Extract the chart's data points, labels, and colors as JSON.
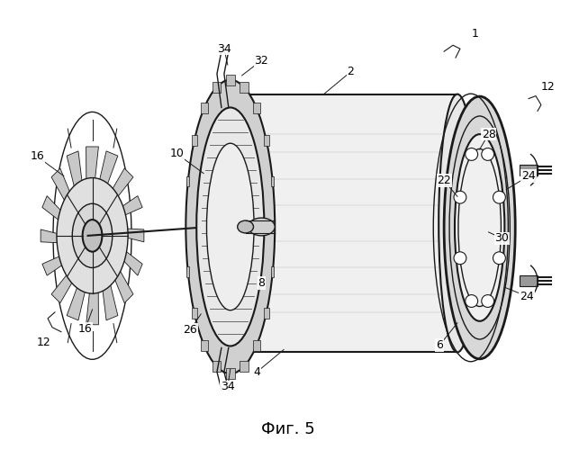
{
  "background_color": "#ffffff",
  "line_color": "#1a1a1a",
  "title": "Фиг. 5",
  "title_fontsize": 13,
  "fig_w": 6.53,
  "fig_h": 5.0,
  "dpi": 100
}
